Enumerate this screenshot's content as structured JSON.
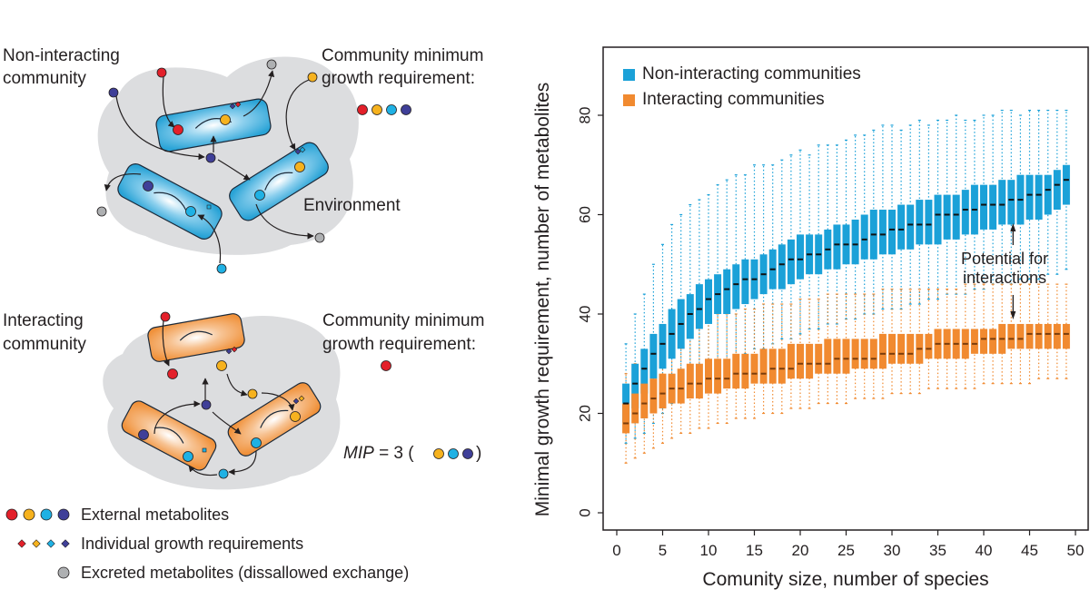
{
  "diagram": {
    "top_panel": {
      "title_line1": "Non-interacting",
      "title_line2": "community",
      "requirement_line1": "Community minimum",
      "requirement_line2": "growth requirement:",
      "environment_label": "Environment",
      "requirement_metabolites": [
        "red",
        "yellow",
        "cyan",
        "navy"
      ],
      "cell_color": "#29a3d6"
    },
    "bottom_panel": {
      "title_line1": "Interacting",
      "title_line2": "community",
      "requirement_line1": "Community minimum",
      "requirement_line2": "growth requirement:",
      "requirement_metabolites": [
        "red"
      ],
      "mip_label": "MIP",
      "mip_value": "= 3 (",
      "mip_close": ")",
      "mip_metabolites": [
        "yellow",
        "cyan",
        "navy"
      ],
      "cell_color": "#f0913a"
    },
    "legend": {
      "external": "External metabolites",
      "individual": "Individual growth requirements",
      "excreted": "Excreted metabolites (dissallowed exchange)"
    },
    "metabolite_colors": {
      "red": "#e3202a",
      "yellow": "#f6b21e",
      "cyan": "#1fb1e4",
      "navy": "#3f3f98",
      "gray": "#aeb0b2"
    },
    "environment_color": "#dcdddf"
  },
  "chart_data": {
    "type": "boxplot",
    "title": "",
    "xlabel": "Comunity size, number of species",
    "ylabel": "Minimal growth requirement, number of metabolites",
    "xlim": [
      0,
      50
    ],
    "ylim": [
      0,
      80
    ],
    "xticks": [
      "0",
      "5",
      "10",
      "15",
      "20",
      "25",
      "30",
      "35",
      "40",
      "45",
      "50"
    ],
    "yticks": [
      "0",
      "20",
      "40",
      "60",
      "80"
    ],
    "grid": false,
    "legend_position": "top-left",
    "annotation": {
      "line1": "Potential for",
      "line2": "interactions",
      "x": 43
    },
    "x": [
      1,
      2,
      3,
      4,
      5,
      6,
      7,
      8,
      9,
      10,
      11,
      12,
      13,
      14,
      15,
      16,
      17,
      18,
      19,
      20,
      21,
      22,
      23,
      24,
      25,
      26,
      27,
      28,
      29,
      30,
      31,
      32,
      33,
      34,
      35,
      36,
      37,
      38,
      39,
      40,
      41,
      42,
      43,
      44,
      45,
      46,
      47,
      48,
      49
    ],
    "series": [
      {
        "name": "Non-interacting communities",
        "color": "#1ba1d8",
        "median": [
          22,
          26,
          29,
          32,
          34,
          36,
          38,
          40,
          41,
          43,
          44,
          45,
          46,
          47,
          47,
          48,
          49,
          50,
          51,
          51,
          52,
          52,
          53,
          54,
          54,
          54,
          55,
          56,
          56,
          57,
          57,
          58,
          58,
          58,
          60,
          60,
          60,
          61,
          61,
          62,
          62,
          62,
          63,
          63,
          64,
          64,
          65,
          66,
          67
        ],
        "q1": [
          18,
          21,
          24,
          27,
          29,
          31,
          33,
          35,
          37,
          38,
          40,
          40,
          41,
          42,
          43,
          44,
          45,
          45,
          46,
          47,
          48,
          48,
          49,
          49,
          50,
          50,
          51,
          51,
          52,
          52,
          53,
          53,
          54,
          54,
          54,
          55,
          55,
          56,
          56,
          57,
          57,
          58,
          58,
          58,
          59,
          59,
          60,
          61,
          62
        ],
        "q3": [
          26,
          30,
          33,
          36,
          38,
          41,
          43,
          44,
          46,
          47,
          48,
          49,
          50,
          51,
          51,
          52,
          53,
          54,
          55,
          56,
          56,
          56,
          57,
          58,
          58,
          59,
          60,
          61,
          61,
          61,
          62,
          62,
          63,
          63,
          64,
          64,
          64,
          65,
          66,
          66,
          66,
          67,
          67,
          68,
          68,
          68,
          68,
          69,
          70
        ],
        "lo": [
          14,
          15,
          16,
          18,
          20,
          22,
          23,
          25,
          27,
          28,
          30,
          30,
          31,
          32,
          33,
          33,
          34,
          35,
          35,
          36,
          37,
          37,
          38,
          38,
          39,
          39,
          40,
          40,
          41,
          41,
          41,
          42,
          42,
          43,
          43,
          44,
          44,
          44,
          45,
          45,
          46,
          46,
          46,
          47,
          47,
          47,
          48,
          48,
          49
        ],
        "hi": [
          34,
          40,
          44,
          50,
          54,
          58,
          60,
          62,
          63,
          64,
          66,
          67,
          68,
          68,
          70,
          70,
          70,
          71,
          72,
          73,
          72,
          74,
          74,
          74,
          75,
          76,
          76,
          77,
          78,
          78,
          77,
          78,
          79,
          78,
          79,
          79,
          80,
          79,
          79,
          80,
          80,
          81,
          81,
          80,
          81,
          81,
          81,
          81,
          81
        ]
      },
      {
        "name": "Interacting communities",
        "color": "#f18a30",
        "median": [
          18,
          20,
          22,
          23,
          24,
          25,
          25,
          26,
          26,
          27,
          27,
          27,
          28,
          28,
          28,
          28,
          29,
          29,
          29,
          30,
          30,
          30,
          30,
          31,
          31,
          31,
          31,
          31,
          32,
          32,
          32,
          32,
          33,
          33,
          34,
          34,
          34,
          34,
          34,
          35,
          35,
          35,
          35,
          35,
          36,
          36,
          36,
          36,
          36
        ],
        "q1": [
          16,
          18,
          19,
          20,
          21,
          22,
          22,
          23,
          23,
          24,
          24,
          25,
          25,
          25,
          26,
          26,
          26,
          26,
          27,
          27,
          27,
          28,
          28,
          28,
          28,
          29,
          29,
          29,
          29,
          30,
          30,
          30,
          30,
          31,
          31,
          31,
          31,
          31,
          32,
          32,
          32,
          32,
          33,
          33,
          33,
          33,
          33,
          33,
          33
        ],
        "q3": [
          22,
          24,
          26,
          27,
          28,
          28,
          29,
          30,
          30,
          31,
          31,
          31,
          32,
          32,
          32,
          33,
          33,
          33,
          34,
          34,
          34,
          34,
          35,
          35,
          35,
          35,
          35,
          35,
          36,
          36,
          36,
          36,
          36,
          36,
          37,
          37,
          37,
          37,
          37,
          37,
          37,
          38,
          38,
          38,
          38,
          38,
          38,
          38,
          38
        ],
        "lo": [
          10,
          11,
          12,
          13,
          14,
          15,
          16,
          16,
          17,
          17,
          18,
          18,
          19,
          19,
          19,
          20,
          20,
          20,
          21,
          21,
          21,
          22,
          22,
          22,
          22,
          23,
          23,
          23,
          23,
          24,
          24,
          24,
          24,
          25,
          25,
          25,
          25,
          25,
          25,
          26,
          26,
          26,
          26,
          26,
          26,
          27,
          27,
          27,
          27
        ],
        "hi": [
          28,
          30,
          32,
          34,
          35,
          36,
          37,
          38,
          38,
          39,
          40,
          40,
          40,
          41,
          41,
          42,
          42,
          42,
          42,
          43,
          43,
          43,
          44,
          44,
          44,
          44,
          44,
          44,
          45,
          45,
          45,
          45,
          45,
          45,
          45,
          45,
          45,
          46,
          46,
          46,
          46,
          46,
          46,
          46,
          46,
          46,
          46,
          46,
          46
        ]
      }
    ]
  }
}
